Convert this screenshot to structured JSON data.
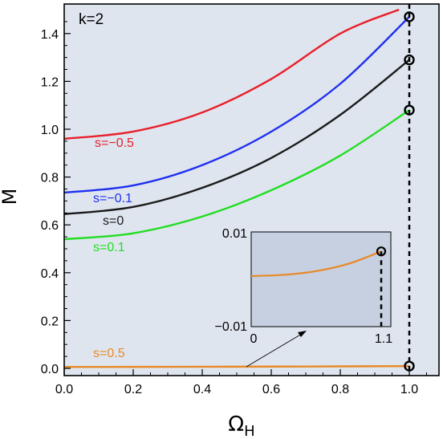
{
  "chart_data": {
    "type": "line",
    "panel_label": "k=2",
    "xlabel": "Ω",
    "xlabel_sub": "H",
    "ylabel": "M",
    "xlim": [
      0.0,
      1.1
    ],
    "ylim": [
      -0.02,
      1.5
    ],
    "x_ticks": [
      "0.0",
      "0.2",
      "0.4",
      "0.6",
      "0.8",
      "1.0"
    ],
    "y_ticks": [
      "0.0",
      "0.2",
      "0.4",
      "0.6",
      "0.8",
      "1.0",
      "1.2",
      "1.4"
    ],
    "background_color": "#dfe5ef",
    "grid": false,
    "series": [
      {
        "name": "s=−0.5",
        "color": "#e8202a",
        "x": [
          0.0,
          0.2,
          0.4,
          0.6,
          0.8,
          0.97
        ],
        "y": [
          0.96,
          0.99,
          1.07,
          1.21,
          1.4,
          1.5
        ]
      },
      {
        "name": "s=−0.1",
        "color": "#1f2ff0",
        "x": [
          0.0,
          0.2,
          0.4,
          0.6,
          0.8,
          1.0
        ],
        "y": [
          0.735,
          0.765,
          0.85,
          0.99,
          1.19,
          1.47
        ]
      },
      {
        "name": "s=0",
        "color": "#1a1a1a",
        "x": [
          0.0,
          0.2,
          0.4,
          0.6,
          0.8,
          1.0
        ],
        "y": [
          0.645,
          0.675,
          0.755,
          0.88,
          1.06,
          1.29
        ]
      },
      {
        "name": "s=0.1",
        "color": "#22dd22",
        "x": [
          0.0,
          0.2,
          0.4,
          0.6,
          0.8,
          1.0
        ],
        "y": [
          0.54,
          0.565,
          0.635,
          0.745,
          0.89,
          1.08
        ]
      },
      {
        "name": "s=0.5",
        "color": "#e88a28",
        "x": [
          0.0,
          0.2,
          0.4,
          0.6,
          0.8,
          1.0
        ],
        "y": [
          0.006,
          0.0063,
          0.0068,
          0.0075,
          0.0084,
          0.0095
        ]
      }
    ],
    "endpoint_markers": [
      {
        "x": 1.0,
        "y": 1.47
      },
      {
        "x": 1.0,
        "y": 1.29
      },
      {
        "x": 1.0,
        "y": 1.08
      },
      {
        "x": 1.0,
        "y": 0.0095
      }
    ],
    "vertical_line_x": 1.0,
    "inset": {
      "x_ticks": [
        "0",
        "1.1"
      ],
      "y_ticks": [
        "0.01",
        "−0.01"
      ],
      "xlim": [
        0,
        1.1
      ],
      "ylim": [
        -0.01,
        0.01
      ],
      "background_color": "#c6d0e1",
      "series": {
        "color": "#e88a28",
        "x": [
          0.0,
          0.25,
          0.5,
          0.75,
          1.0
        ],
        "y": [
          0.0,
          0.0003,
          0.0012,
          0.003,
          0.006
        ]
      },
      "marker": {
        "x": 1.0,
        "y": 0.006
      },
      "vertical_line_x": 1.0
    }
  }
}
